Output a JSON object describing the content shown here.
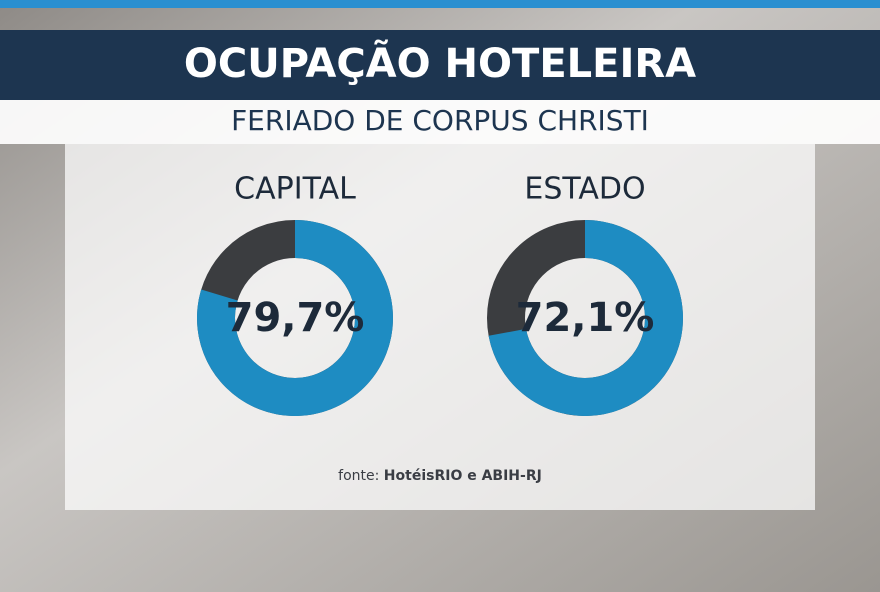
{
  "title": "OCUPAÇÃO HOTELEIRA",
  "subtitle": "FERIADO DE CORPUS CHRISTI",
  "source": {
    "prefix": "fonte:",
    "text": "HotéisRIO e ABIH-RJ"
  },
  "chart_data": [
    {
      "type": "donut",
      "title": "CAPITAL",
      "values": [
        79.7
      ],
      "value_labels": [
        "79,7%"
      ],
      "color": "#1e8cc2",
      "track_color": "#3b3d40"
    },
    {
      "type": "donut",
      "title": "ESTADO",
      "values": [
        72.1
      ],
      "value_labels": [
        "72,1%"
      ],
      "color": "#1e8cc2",
      "track_color": "#3b3d40"
    }
  ]
}
